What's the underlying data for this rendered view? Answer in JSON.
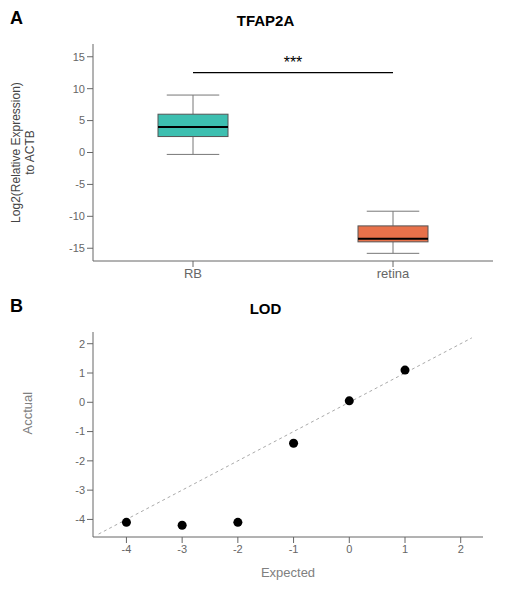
{
  "chart_data": [
    {
      "type": "box",
      "title": "TFAP2A",
      "panel_label": "A",
      "ylabel": "Log2(Relative Expression)\nto ACTB",
      "categories": [
        "RB",
        "retina"
      ],
      "boxes": [
        {
          "median": 4.0,
          "q1": 2.5,
          "q3": 6.0,
          "whisker_low": -0.3,
          "whisker_high": 9.0,
          "color": "#3dbfb0",
          "edge_color": "#555555"
        },
        {
          "median": -13.5,
          "q1": -14.0,
          "q3": -11.5,
          "whisker_low": -15.8,
          "whisker_high": -9.2,
          "color": "#e8714a",
          "edge_color": "#555555"
        }
      ],
      "ylim": [
        -17,
        17
      ],
      "yticks": [
        -15,
        -10,
        -5,
        0,
        5,
        10,
        15
      ],
      "annotations": [
        {
          "text": "***",
          "y": 12.5,
          "from": "RB",
          "to": "retina"
        }
      ]
    },
    {
      "type": "scatter",
      "title": "LOD",
      "panel_label": "B",
      "xlabel": "Expected",
      "ylabel": "Acctual",
      "x": [
        -4.0,
        -3.0,
        -2.0,
        -1.0,
        0.0,
        1.0
      ],
      "values": [
        -4.1,
        -4.2,
        -4.1,
        -1.4,
        0.05,
        1.1
      ],
      "color": "#000000",
      "reference_line": {
        "x": [
          -4.5,
          2.2
        ],
        "y": [
          -4.5,
          2.2
        ],
        "color": "#aaaaaa",
        "line_style": "dashed"
      },
      "xlim": [
        -4.6,
        2.4
      ],
      "ylim": [
        -4.6,
        2.4
      ],
      "xticks": [
        -4,
        -3,
        -2,
        -1,
        0,
        1,
        2
      ],
      "yticks": [
        -4,
        -3,
        -2,
        -1,
        0,
        1,
        2
      ]
    }
  ]
}
